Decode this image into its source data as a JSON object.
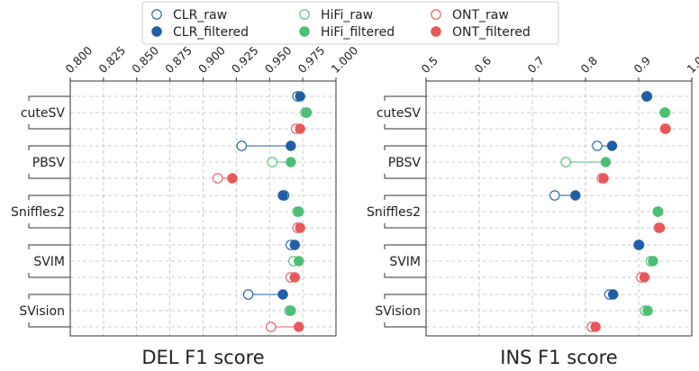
{
  "chart_data": [
    {
      "type": "scatter",
      "title": "",
      "xlabel": "DEL F1 score",
      "ylabel": "",
      "xlim": [
        0.8,
        1.0
      ],
      "xticks": [
        "0.800",
        "0.825",
        "0.850",
        "0.875",
        "0.900",
        "0.925",
        "0.950",
        "0.975",
        "1.000"
      ],
      "tools": [
        "cuteSV",
        "PBSV",
        "Sniffles2",
        "SVIM",
        "SVision"
      ],
      "technologies": [
        "CLR",
        "HiFi",
        "ONT"
      ],
      "series": [
        {
          "name": "CLR_raw",
          "values": [
            0.971,
            0.929,
            0.961,
            0.966,
            0.934
          ]
        },
        {
          "name": "CLR_filtered",
          "values": [
            0.973,
            0.966,
            0.96,
            0.969,
            0.96
          ]
        },
        {
          "name": "HiFi_raw",
          "values": [
            0.977,
            0.952,
            0.971,
            0.968,
            0.965
          ]
        },
        {
          "name": "HiFi_filtered",
          "values": [
            0.978,
            0.966,
            0.972,
            0.972,
            0.966
          ]
        },
        {
          "name": "ONT_raw",
          "values": [
            0.97,
            0.911,
            0.971,
            0.966,
            0.951
          ]
        },
        {
          "name": "ONT_filtered",
          "values": [
            0.973,
            0.922,
            0.973,
            0.969,
            0.972
          ]
        }
      ]
    },
    {
      "type": "scatter",
      "title": "",
      "xlabel": "INS F1 score",
      "ylabel": "",
      "xlim": [
        0.5,
        1.0
      ],
      "xticks": [
        "0.5",
        "0.6",
        "0.7",
        "0.8",
        "0.9",
        "1.0"
      ],
      "tools": [
        "cuteSV",
        "PBSV",
        "Sniffles2",
        "SVIM",
        "SVision"
      ],
      "technologies": [
        "CLR",
        "HiFi",
        "ONT"
      ],
      "series": [
        {
          "name": "CLR_raw",
          "values": [
            0.915,
            0.822,
            0.742,
            0.9,
            0.845
          ]
        },
        {
          "name": "CLR_filtered",
          "values": [
            0.916,
            0.85,
            0.781,
            0.901,
            0.852
          ]
        },
        {
          "name": "HiFi_raw",
          "values": [
            0.949,
            0.763,
            0.936,
            0.923,
            0.912
          ]
        },
        {
          "name": "HiFi_filtered",
          "values": [
            0.95,
            0.838,
            0.937,
            0.927,
            0.917
          ]
        },
        {
          "name": "ONT_raw",
          "values": [
            0.95,
            0.831,
            0.938,
            0.905,
            0.812
          ]
        },
        {
          "name": "ONT_filtered",
          "values": [
            0.951,
            0.834,
            0.94,
            0.911,
            0.819
          ]
        }
      ]
    }
  ],
  "legend": {
    "items": [
      {
        "label": "CLR_raw",
        "color": "#1f5fa6",
        "filled": false
      },
      {
        "label": "HiFi_raw",
        "color": "#4bbf73",
        "filled": false
      },
      {
        "label": "ONT_raw",
        "color": "#e8585a",
        "filled": false
      },
      {
        "label": "CLR_filtered",
        "color": "#1f5fa6",
        "filled": true
      },
      {
        "label": "HiFi_filtered",
        "color": "#4bbf73",
        "filled": true
      },
      {
        "label": "ONT_filtered",
        "color": "#e8585a",
        "filled": true
      }
    ]
  },
  "colors": {
    "CLR": "#1f5fa6",
    "HiFi": "#4bbf73",
    "ONT": "#e8585a"
  }
}
